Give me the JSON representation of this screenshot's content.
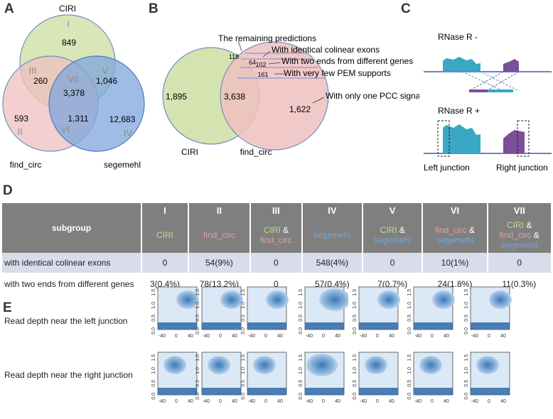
{
  "panels": {
    "A": "A",
    "B": "B",
    "C": "C",
    "D": "D",
    "E": "E"
  },
  "venn_a": {
    "sets": {
      "ciri": "CIRI",
      "find_circ": "find_circ",
      "segemehl": "segemehl"
    },
    "regions": [
      {
        "roman": "I",
        "count": "849"
      },
      {
        "roman": "II",
        "count": "593"
      },
      {
        "roman": "III",
        "count": "260"
      },
      {
        "roman": "IV",
        "count": "12,683"
      },
      {
        "roman": "V",
        "count": "1,046"
      },
      {
        "roman": "VI",
        "count": "1,311"
      },
      {
        "roman": "VII",
        "count": "3,378"
      }
    ]
  },
  "venn_b": {
    "sets": {
      "ciri": "CIRI",
      "find_circ": "find_circ"
    },
    "counts": {
      "ciri_only": "1,895",
      "overlap": "3,638",
      "one_pcc": "1,622",
      "very_few": "161",
      "two_ends": "102",
      "identical": "64",
      "remaining": "118"
    },
    "annotations": {
      "remaining": "The remaining predictions",
      "identical": "With identical colinear exons",
      "two_ends": "With two ends from different genes",
      "few_pem": "With very few PEM supports",
      "one_pcc": "With only one PCC signal"
    }
  },
  "panel_c": {
    "minus": "RNase R -",
    "plus": "RNase R +",
    "left": "Left junction",
    "right": "Right junction"
  },
  "table": {
    "subgroup_label": "subgroup",
    "romans": [
      "I",
      "II",
      "III",
      "IV",
      "V",
      "VI",
      "VII"
    ],
    "groups": [
      [
        {
          "t": "CIRI",
          "c": "g"
        }
      ],
      [
        {
          "t": "find_circ",
          "c": "r"
        }
      ],
      [
        {
          "t": "CIRI",
          "c": "g"
        },
        {
          "t": " &",
          "c": "amp"
        },
        {
          "t": "find_circ",
          "c": "r",
          "br": true
        }
      ],
      [
        {
          "t": "segemehl",
          "c": "b"
        }
      ],
      [
        {
          "t": "CIRI",
          "c": "g"
        },
        {
          "t": " &",
          "c": "amp"
        },
        {
          "t": "segemehl",
          "c": "b",
          "br": true
        }
      ],
      [
        {
          "t": "find_circ",
          "c": "r"
        },
        {
          "t": " &",
          "c": "amp"
        },
        {
          "t": "segemehl",
          "c": "b",
          "br": true
        }
      ],
      [
        {
          "t": "CIRI",
          "c": "g"
        },
        {
          "t": " &",
          "c": "amp"
        },
        {
          "t": "find_circ",
          "c": "r",
          "br": true
        },
        {
          "t": " &",
          "c": "amp"
        },
        {
          "t": "segemehl",
          "c": "b",
          "br": true
        }
      ]
    ],
    "rows": [
      {
        "label": "with identical colinear exons",
        "values": [
          "0",
          "54(9%)",
          "0",
          "548(4%)",
          "0",
          "10(1%)",
          "0"
        ]
      },
      {
        "label": "with two ends from different genes",
        "values": [
          "3(0.4%)",
          "78(13.2%)",
          "0",
          "57(0.4%)",
          "7(0.7%)",
          "24(1.8%)",
          "11(0.3%)"
        ]
      }
    ]
  },
  "panel_e": {
    "row_labels": [
      "Read depth near the left junction",
      "Read depth near the right junction"
    ],
    "y_ticks": [
      "0.0",
      "0.5",
      "1.0",
      "1.5"
    ],
    "x_ticks": [
      "-40",
      "0",
      "40"
    ]
  },
  "colors": {
    "green": "#d4e3b0",
    "red": "#f0bfbf",
    "blue": "#7ea6dc",
    "teal": "#3aa7c4",
    "purple": "#7b4f9a"
  }
}
